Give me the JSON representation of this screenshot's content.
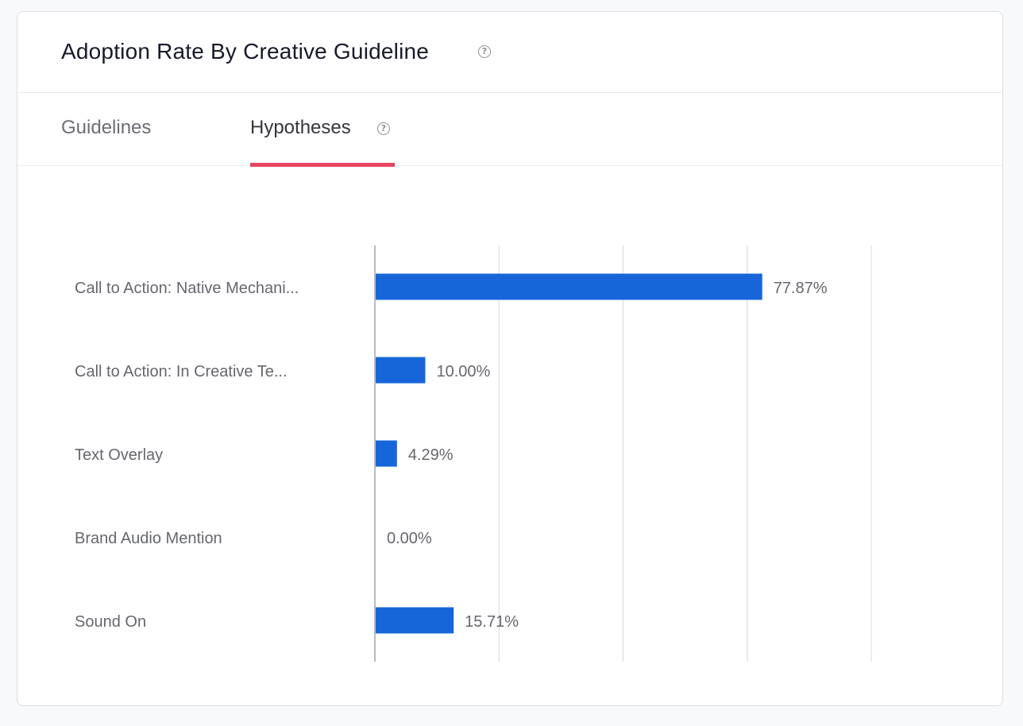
{
  "header": {
    "title": "Adoption Rate By Creative Guideline",
    "help_icon": "question-circle-icon"
  },
  "tabs": [
    {
      "label": "Guidelines",
      "active": false
    },
    {
      "label": "Hypotheses",
      "active": true,
      "help_icon": "question-circle-icon"
    }
  ],
  "colors": {
    "bar": "#1766d9",
    "tab_indicator": "#e8475f",
    "gridline": "#e4e5e9",
    "axis": "#b9bbc0",
    "label_text": "#65676e"
  },
  "chart_data": {
    "type": "bar",
    "orientation": "horizontal",
    "title": "",
    "xlabel": "",
    "ylabel": "",
    "categories": [
      "Call to Action: Native Mechani...",
      "Call to Action: In Creative Te...",
      "Text Overlay",
      "Brand Audio Mention",
      "Sound On"
    ],
    "values": [
      77.87,
      10.0,
      4.29,
      0.0,
      15.71
    ],
    "value_labels": [
      "77.87%",
      "10.00%",
      "4.29%",
      "0.00%",
      "15.71%"
    ],
    "xlim": [
      0,
      100
    ],
    "grid": true,
    "legend": "none"
  }
}
